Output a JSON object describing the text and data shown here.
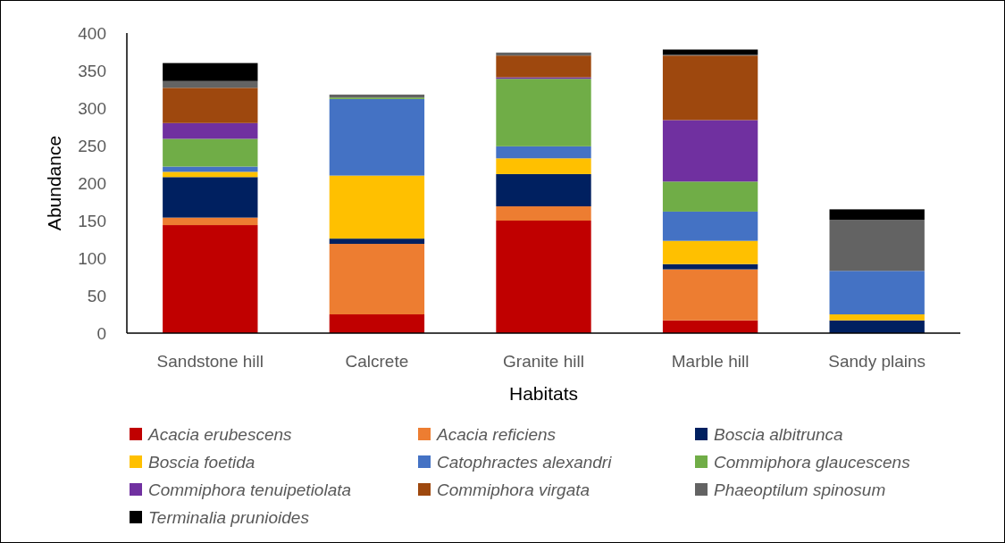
{
  "chart_data": {
    "type": "bar",
    "stacked": true,
    "xlabel": "Habitats",
    "ylabel": "Abundance",
    "categories": [
      "Sandstone hill",
      "Calcrete",
      "Granite hill",
      "Marble hill",
      "Sandy plains"
    ],
    "ylim": [
      0,
      400
    ],
    "yticks": [
      0,
      50,
      100,
      150,
      200,
      250,
      300,
      350,
      400
    ],
    "grid": false,
    "legend": "bottom",
    "series": [
      {
        "name": "Acacia erubescens",
        "color": "#c00000",
        "values": [
          144,
          25,
          150,
          17,
          0
        ]
      },
      {
        "name": "Acacia reficiens",
        "color": "#ed7d31",
        "values": [
          10,
          94,
          19,
          68,
          0
        ]
      },
      {
        "name": "Boscia albitrunca",
        "color": "#002060",
        "values": [
          54,
          7,
          43,
          7,
          17
        ]
      },
      {
        "name": "Boscia foetida",
        "color": "#ffc000",
        "values": [
          7,
          84,
          21,
          31,
          8
        ]
      },
      {
        "name": "Catophractes alexandri",
        "color": "#4472c4",
        "values": [
          7,
          102,
          16,
          39,
          58
        ]
      },
      {
        "name": "Commiphora glaucescens",
        "color": "#70ad47",
        "values": [
          37,
          2,
          90,
          40,
          0
        ]
      },
      {
        "name": "Commiphora tenuipetiolata",
        "color": "#7030a0",
        "values": [
          21,
          0,
          2,
          82,
          0
        ]
      },
      {
        "name": "Commiphora virgata",
        "color": "#9e480e",
        "values": [
          47,
          0,
          29,
          86,
          0
        ]
      },
      {
        "name": "Phaeoptilum spinosum",
        "color": "#636363",
        "values": [
          9,
          4,
          4,
          1,
          68
        ]
      },
      {
        "name": "Terminalia prunioides",
        "color": "#000000",
        "values": [
          24,
          0,
          0,
          7,
          14
        ]
      }
    ]
  }
}
